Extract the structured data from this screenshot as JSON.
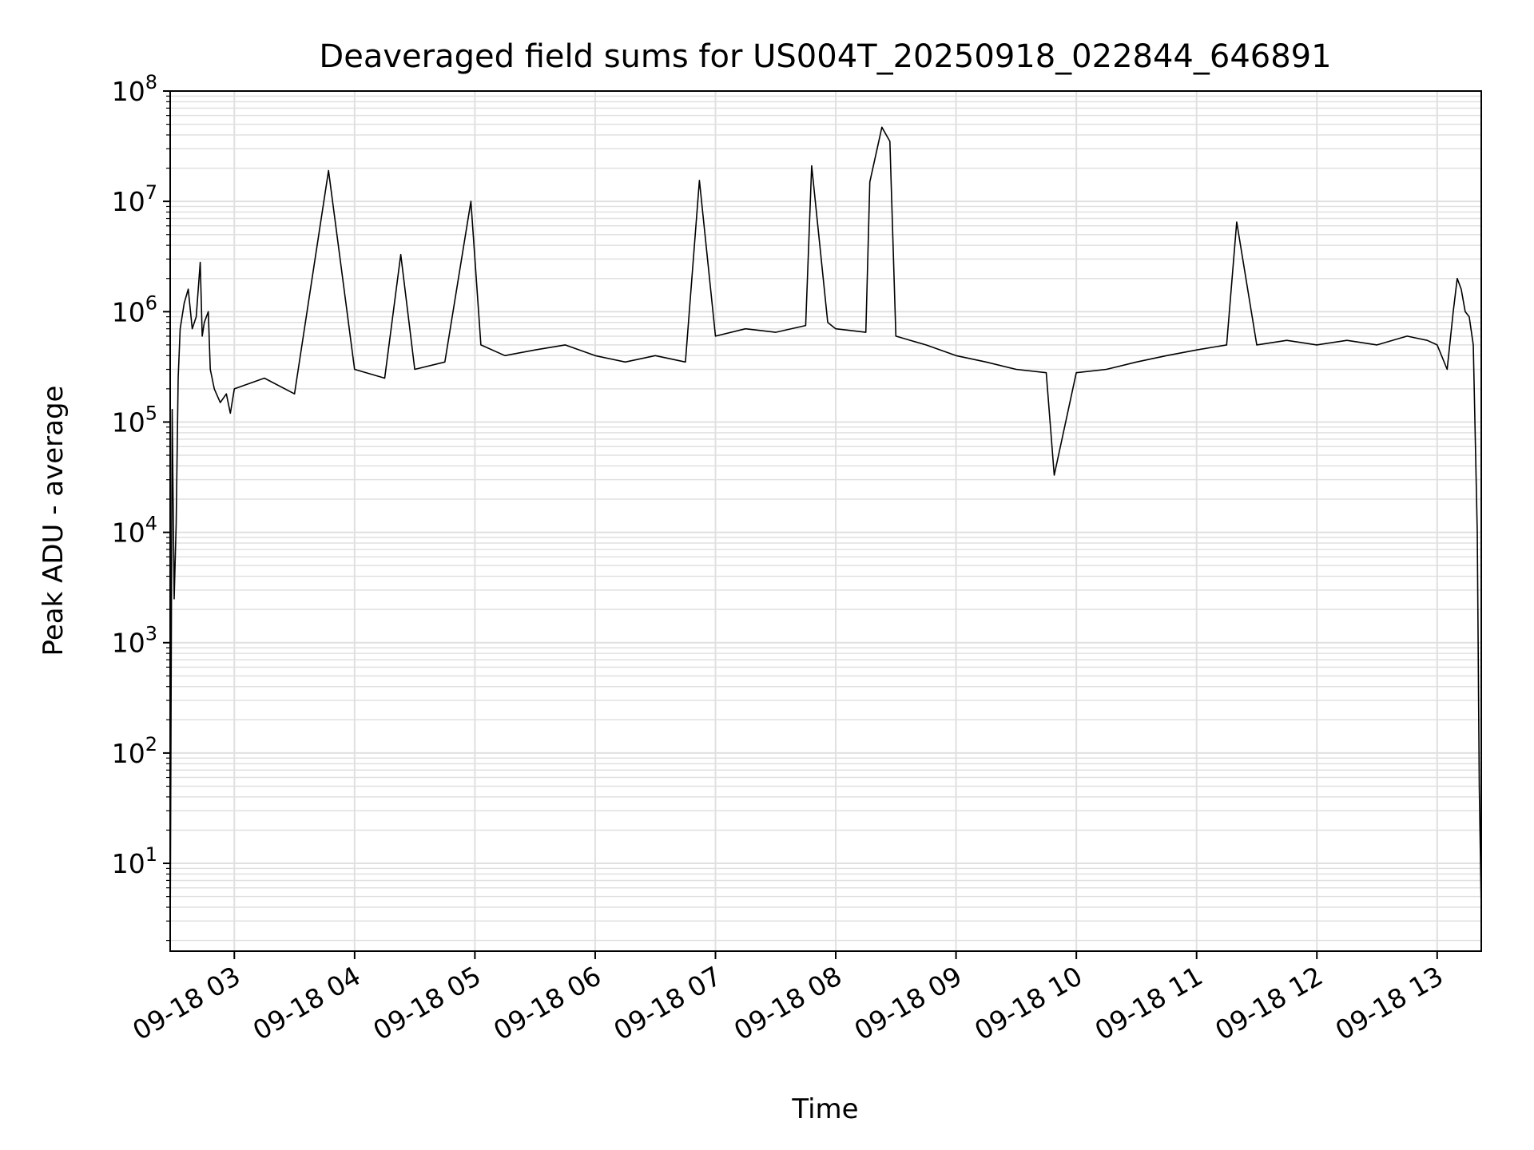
{
  "chart_data": {
    "type": "line",
    "title": "Deaveraged field sums for US004T_20250918_022844_646891",
    "xlabel": "Time",
    "ylabel": "Peak ADU - average",
    "yscale": "log",
    "ylim": [
      1.6,
      100000000
    ],
    "xlim": [
      "2025-09-18 02:28",
      "2025-09-18 13:22"
    ],
    "grid": true,
    "line_color": "#000000",
    "grid_color": "#e0e0e0",
    "x_ticks": [
      {
        "x": "2025-09-18 03:00",
        "label": "09-18 03"
      },
      {
        "x": "2025-09-18 04:00",
        "label": "09-18 04"
      },
      {
        "x": "2025-09-18 05:00",
        "label": "09-18 05"
      },
      {
        "x": "2025-09-18 06:00",
        "label": "09-18 06"
      },
      {
        "x": "2025-09-18 07:00",
        "label": "09-18 07"
      },
      {
        "x": "2025-09-18 08:00",
        "label": "09-18 08"
      },
      {
        "x": "2025-09-18 09:00",
        "label": "09-18 09"
      },
      {
        "x": "2025-09-18 10:00",
        "label": "09-18 10"
      },
      {
        "x": "2025-09-18 11:00",
        "label": "09-18 11"
      },
      {
        "x": "2025-09-18 12:00",
        "label": "09-18 12"
      },
      {
        "x": "2025-09-18 13:00",
        "label": "09-18 13"
      }
    ],
    "y_ticks": [
      {
        "value": 10,
        "base": "10",
        "exp": "1"
      },
      {
        "value": 100,
        "base": "10",
        "exp": "2"
      },
      {
        "value": 1000,
        "base": "10",
        "exp": "3"
      },
      {
        "value": 10000,
        "base": "10",
        "exp": "4"
      },
      {
        "value": 100000,
        "base": "10",
        "exp": "5"
      },
      {
        "value": 1000000,
        "base": "10",
        "exp": "6"
      },
      {
        "value": 10000000,
        "base": "10",
        "exp": "7"
      },
      {
        "value": 100000000,
        "base": "10",
        "exp": "8"
      }
    ],
    "series": [
      {
        "x": [
          "2025-09-18 02:28",
          "2025-09-18 02:29",
          "2025-09-18 02:30",
          "2025-09-18 02:31",
          "2025-09-18 02:32",
          "2025-09-18 02:33",
          "2025-09-18 02:35",
          "2025-09-18 02:37",
          "2025-09-18 02:39",
          "2025-09-18 02:41",
          "2025-09-18 02:43",
          "2025-09-18 02:44",
          "2025-09-18 02:45",
          "2025-09-18 02:47",
          "2025-09-18 02:48",
          "2025-09-18 02:50",
          "2025-09-18 02:53",
          "2025-09-18 02:56",
          "2025-09-18 02:58",
          "2025-09-18 03:00",
          "2025-09-18 03:15",
          "2025-09-18 03:30",
          "2025-09-18 03:47",
          "2025-09-18 04:00",
          "2025-09-18 04:15",
          "2025-09-18 04:23",
          "2025-09-18 04:30",
          "2025-09-18 04:45",
          "2025-09-18 04:58",
          "2025-09-18 05:03",
          "2025-09-18 05:15",
          "2025-09-18 05:30",
          "2025-09-18 05:45",
          "2025-09-18 06:00",
          "2025-09-18 06:15",
          "2025-09-18 06:30",
          "2025-09-18 06:45",
          "2025-09-18 06:52",
          "2025-09-18 07:00",
          "2025-09-18 07:15",
          "2025-09-18 07:30",
          "2025-09-18 07:45",
          "2025-09-18 07:48",
          "2025-09-18 07:56",
          "2025-09-18 08:00",
          "2025-09-18 08:15",
          "2025-09-18 08:17",
          "2025-09-18 08:23",
          "2025-09-18 08:27",
          "2025-09-18 08:30",
          "2025-09-18 08:45",
          "2025-09-18 09:00",
          "2025-09-18 09:15",
          "2025-09-18 09:30",
          "2025-09-18 09:45",
          "2025-09-18 09:49",
          "2025-09-18 10:00",
          "2025-09-18 10:15",
          "2025-09-18 10:30",
          "2025-09-18 10:45",
          "2025-09-18 11:00",
          "2025-09-18 11:15",
          "2025-09-18 11:20",
          "2025-09-18 11:30",
          "2025-09-18 11:45",
          "2025-09-18 12:00",
          "2025-09-18 12:15",
          "2025-09-18 12:30",
          "2025-09-18 12:45",
          "2025-09-18 12:55",
          "2025-09-18 13:00",
          "2025-09-18 13:05",
          "2025-09-18 13:08",
          "2025-09-18 13:10",
          "2025-09-18 13:12",
          "2025-09-18 13:14",
          "2025-09-18 13:16",
          "2025-09-18 13:18",
          "2025-09-18 13:20",
          "2025-09-18 13:21",
          "2025-09-18 13:22"
        ],
        "values": [
          1.7,
          130000,
          2500,
          12000,
          250000,
          700000,
          1200000,
          1600000,
          700000,
          900000,
          2800000,
          600000,
          800000,
          1000000,
          300000,
          200000,
          150000,
          180000,
          120000,
          200000,
          250000,
          180000,
          19000000,
          300000,
          250000,
          3300000,
          300000,
          350000,
          10000000,
          500000,
          400000,
          450000,
          500000,
          400000,
          350000,
          400000,
          350000,
          15500000,
          600000,
          700000,
          650000,
          750000,
          21000000,
          800000,
          700000,
          650000,
          15000000,
          47000000,
          35000000,
          600000,
          500000,
          400000,
          350000,
          300000,
          280000,
          33000,
          280000,
          300000,
          350000,
          400000,
          450000,
          500000,
          6500000,
          500000,
          550000,
          500000,
          550000,
          500000,
          600000,
          550000,
          500000,
          300000,
          1000000,
          2000000,
          1600000,
          1000000,
          900000,
          500000,
          10000,
          50,
          3.8
        ]
      }
    ]
  }
}
